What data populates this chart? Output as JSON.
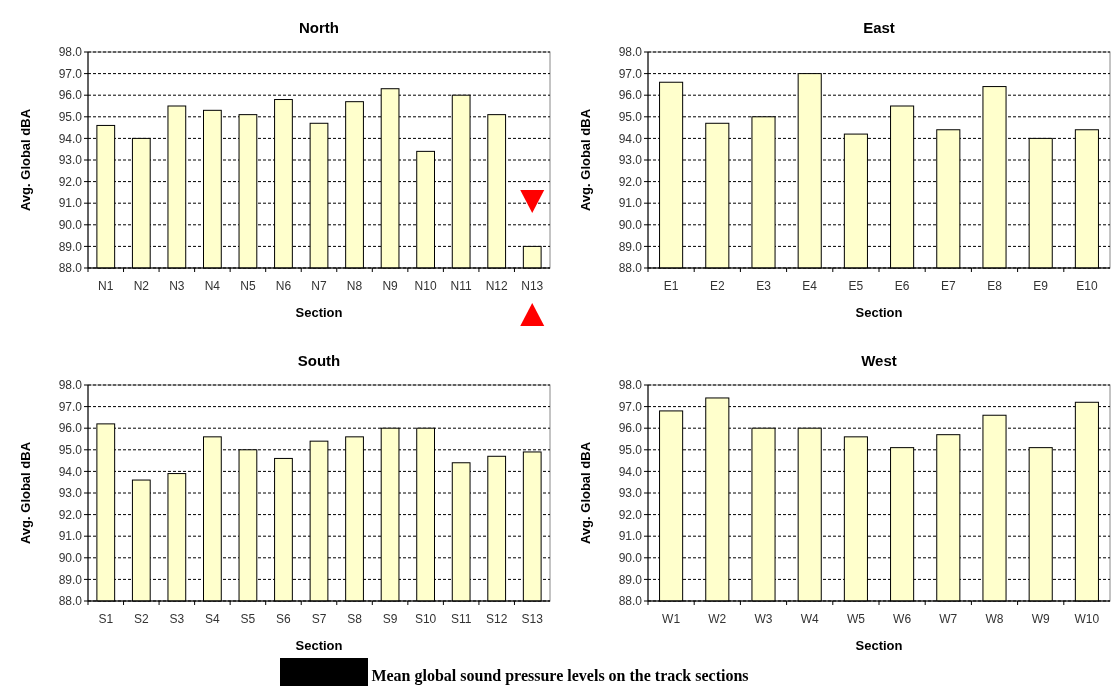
{
  "chart_data": [
    {
      "type": "bar",
      "title": "North",
      "xlabel": "Section",
      "ylabel": "Avg. Global dBA",
      "categories": [
        "N1",
        "N2",
        "N3",
        "N4",
        "N5",
        "N6",
        "N7",
        "N8",
        "N9",
        "N10",
        "N11",
        "N12",
        "N13"
      ],
      "values": [
        94.6,
        94.0,
        95.5,
        95.3,
        95.1,
        95.8,
        94.7,
        95.7,
        96.3,
        93.4,
        96.0,
        95.1,
        89.0
      ],
      "color": "#ffffcc",
      "ylim": [
        88,
        98
      ],
      "yticks": [
        {
          "value": 88,
          "label": "88.0"
        },
        {
          "value": 89,
          "label": "89.0"
        },
        {
          "value": 90,
          "label": "90.0"
        },
        {
          "value": 91,
          "label": "91.0"
        },
        {
          "value": 92,
          "label": "92.0"
        },
        {
          "value": 93,
          "label": "93.0"
        },
        {
          "value": 94,
          "label": "94.0"
        },
        {
          "value": 95,
          "label": "95.0"
        },
        {
          "value": 96,
          "label": "96.0"
        },
        {
          "value": 97,
          "label": "97.0"
        },
        {
          "value": 98,
          "label": "98.0"
        }
      ],
      "grid": "y"
    },
    {
      "type": "bar",
      "title": "East",
      "xlabel": "Section",
      "ylabel": "Avg. Global dBA",
      "categories": [
        "E1",
        "E2",
        "E3",
        "E4",
        "E5",
        "E6",
        "E7",
        "E8",
        "E9",
        "E10"
      ],
      "values": [
        96.6,
        94.7,
        95.0,
        97.0,
        94.2,
        95.5,
        94.4,
        96.4,
        94.0,
        94.4
      ],
      "color": "#ffffcc",
      "ylim": [
        88,
        98
      ],
      "yticks": [
        {
          "value": 88,
          "label": "88.0"
        },
        {
          "value": 89,
          "label": "89.0"
        },
        {
          "value": 90,
          "label": "90.0"
        },
        {
          "value": 91,
          "label": "91.0"
        },
        {
          "value": 92,
          "label": "92.0"
        },
        {
          "value": 93,
          "label": "93.0"
        },
        {
          "value": 94,
          "label": "94.0"
        },
        {
          "value": 95,
          "label": "95.0"
        },
        {
          "value": 96,
          "label": "96.0"
        },
        {
          "value": 97,
          "label": "97.0"
        },
        {
          "value": 98,
          "label": "98.0"
        }
      ],
      "grid": "y"
    },
    {
      "type": "bar",
      "title": "South",
      "xlabel": "Section",
      "ylabel": "Avg. Global dBA",
      "categories": [
        "S1",
        "S2",
        "S3",
        "S4",
        "S5",
        "S6",
        "S7",
        "S8",
        "S9",
        "S10",
        "S11",
        "S12",
        "S13"
      ],
      "values": [
        96.2,
        93.6,
        93.9,
        95.6,
        95.0,
        94.6,
        95.4,
        95.6,
        96.0,
        96.0,
        94.4,
        94.7,
        94.9
      ],
      "color": "#ffffcc",
      "ylim": [
        88,
        98
      ],
      "yticks": [
        {
          "value": 88,
          "label": "88.0"
        },
        {
          "value": 89,
          "label": "89.0"
        },
        {
          "value": 90,
          "label": "90.0"
        },
        {
          "value": 91,
          "label": "91.0"
        },
        {
          "value": 92,
          "label": "92.0"
        },
        {
          "value": 93,
          "label": "93.0"
        },
        {
          "value": 94,
          "label": "94.0"
        },
        {
          "value": 95,
          "label": "95.0"
        },
        {
          "value": 96,
          "label": "96.0"
        },
        {
          "value": 97,
          "label": "97.0"
        },
        {
          "value": 98,
          "label": "98.0"
        }
      ],
      "grid": "y"
    },
    {
      "type": "bar",
      "title": "West",
      "xlabel": "Section",
      "ylabel": "Avg. Global dBA",
      "categories": [
        "W1",
        "W2",
        "W3",
        "W4",
        "W5",
        "W6",
        "W7",
        "W8",
        "W9",
        "W10"
      ],
      "values": [
        96.8,
        97.4,
        96.0,
        96.0,
        95.6,
        95.1,
        95.7,
        96.6,
        95.1,
        97.2
      ],
      "color": "#ffffcc",
      "ylim": [
        88,
        98
      ],
      "yticks": [
        {
          "value": 88,
          "label": "88.0"
        },
        {
          "value": 89,
          "label": "89.0"
        },
        {
          "value": 90,
          "label": "90.0"
        },
        {
          "value": 91,
          "label": "91.0"
        },
        {
          "value": 92,
          "label": "92.0"
        },
        {
          "value": 93,
          "label": "93.0"
        },
        {
          "value": 94,
          "label": "94.0"
        },
        {
          "value": 95,
          "label": "95.0"
        },
        {
          "value": 96,
          "label": "96.0"
        },
        {
          "value": 97,
          "label": "97.0"
        },
        {
          "value": 98,
          "label": "98.0"
        }
      ],
      "grid": "y",
      "annotations": [
        "Mean global sound pressure levels on the track sections"
      ]
    }
  ]
}
